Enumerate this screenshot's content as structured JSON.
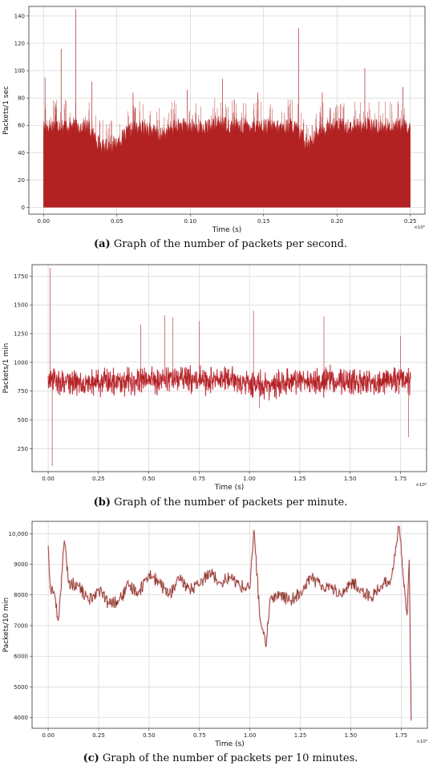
{
  "panels": [
    {
      "caption_letter": "(a)",
      "caption_text": " Graph of the number of packets per second.",
      "multiplier": "×10⁶",
      "chart_data": {
        "type": "bar",
        "title": "",
        "xlabel": "Time (s)",
        "ylabel": "Packets/1 sec",
        "xlim": [
          -0.01,
          0.26
        ],
        "ylim": [
          -5,
          147
        ],
        "xticks": [
          0.0,
          0.05,
          0.1,
          0.15,
          0.2,
          0.25
        ],
        "xtick_labels": [
          "0.00",
          "0.05",
          "0.10",
          "0.15",
          "0.20",
          "0.25"
        ],
        "yticks": [
          0,
          20,
          40,
          60,
          80,
          100,
          120,
          140
        ],
        "ytick_labels": [
          "0",
          "20",
          "40",
          "60",
          "80",
          "100",
          "120",
          "140"
        ],
        "grid": true,
        "series": [
          {
            "color": "#b22222",
            "x": [
              0.0,
              0.01,
              0.02,
              0.03,
              0.04,
              0.05,
              0.06,
              0.07,
              0.08,
              0.09,
              0.1,
              0.11,
              0.12,
              0.13,
              0.14,
              0.15,
              0.16,
              0.17,
              0.18,
              0.19,
              0.2,
              0.21,
              0.22,
              0.23,
              0.24,
              0.25
            ],
            "envelope": [
              57,
              58,
              58,
              57,
              42,
              45,
              55,
              57,
              50,
              58,
              57,
              56,
              60,
              57,
              58,
              57,
              56,
              58,
              45,
              55,
              58,
              57,
              58,
              57,
              58,
              57
            ],
            "spikes": [
              {
                "x": 0.001,
                "y": 95
              },
              {
                "x": 0.012,
                "y": 116
              },
              {
                "x": 0.022,
                "y": 145
              },
              {
                "x": 0.033,
                "y": 92
              },
              {
                "x": 0.061,
                "y": 84
              },
              {
                "x": 0.098,
                "y": 86
              },
              {
                "x": 0.122,
                "y": 94
              },
              {
                "x": 0.146,
                "y": 84
              },
              {
                "x": 0.174,
                "y": 131
              },
              {
                "x": 0.19,
                "y": 84
              },
              {
                "x": 0.219,
                "y": 102
              },
              {
                "x": 0.245,
                "y": 88
              }
            ]
          }
        ]
      }
    },
    {
      "caption_letter": "(b)",
      "caption_text": " Graph of the number of packets per minute.",
      "multiplier": "×10⁶",
      "chart_data": {
        "type": "line",
        "title": "",
        "xlabel": "Time (s)",
        "ylabel": "Packets/1 min",
        "xlim": [
          -0.08,
          1.88
        ],
        "ylim": [
          50,
          1850
        ],
        "xticks": [
          0.0,
          0.25,
          0.5,
          0.75,
          1.0,
          1.25,
          1.5,
          1.75
        ],
        "xtick_labels": [
          "0.00",
          "0.25",
          "0.50",
          "0.75",
          "1.00",
          "1.25",
          "1.50",
          "1.75"
        ],
        "yticks": [
          250,
          500,
          750,
          1000,
          1250,
          1500,
          1750
        ],
        "ytick_labels": [
          "250",
          "500",
          "750",
          "1000",
          "1250",
          "1500",
          "1750"
        ],
        "grid": true,
        "series": [
          {
            "color": "#b22222",
            "x": [
              0.0,
              0.1,
              0.2,
              0.3,
              0.4,
              0.5,
              0.6,
              0.7,
              0.8,
              0.9,
              1.0,
              1.1,
              1.2,
              1.3,
              1.4,
              1.5,
              1.6,
              1.7,
              1.8
            ],
            "mean": [
              840,
              830,
              820,
              840,
              845,
              850,
              860,
              855,
              840,
              850,
              820,
              790,
              830,
              840,
              845,
              830,
              820,
              850,
              840
            ],
            "spread": 110,
            "spikes": [
              {
                "x": 0.01,
                "y": 1820
              },
              {
                "x": 0.02,
                "y": 100
              },
              {
                "x": 0.46,
                "y": 1330
              },
              {
                "x": 0.58,
                "y": 1410
              },
              {
                "x": 0.62,
                "y": 1390
              },
              {
                "x": 0.75,
                "y": 1360
              },
              {
                "x": 1.02,
                "y": 1450
              },
              {
                "x": 1.05,
                "y": 600
              },
              {
                "x": 1.37,
                "y": 1400
              },
              {
                "x": 1.75,
                "y": 1230
              },
              {
                "x": 1.79,
                "y": 350
              }
            ]
          }
        ]
      }
    },
    {
      "caption_letter": "(c)",
      "caption_text": " Graph of the number of packets per 10 minutes.",
      "multiplier": "×10⁶",
      "chart_data": {
        "type": "line",
        "title": "",
        "xlabel": "Time (s)",
        "ylabel": "Packets/10 min",
        "xlim": [
          -0.08,
          1.88
        ],
        "ylim": [
          3650,
          10400
        ],
        "xticks": [
          0.0,
          0.25,
          0.5,
          0.75,
          1.0,
          1.25,
          1.5,
          1.75
        ],
        "xtick_labels": [
          "0.00",
          "0.25",
          "0.50",
          "0.75",
          "1.00",
          "1.25",
          "1.50",
          "1.75"
        ],
        "yticks": [
          4000,
          5000,
          6000,
          7000,
          8000,
          9000,
          10000
        ],
        "ytick_labels": [
          "4000",
          "5000",
          "6000",
          "7000",
          "8000",
          "9000",
          "10,000"
        ],
        "grid": true,
        "series": [
          {
            "color": "#8b3a2a",
            "x": [
              0.0,
              0.01,
              0.03,
              0.05,
              0.08,
              0.1,
              0.15,
              0.2,
              0.25,
              0.3,
              0.35,
              0.4,
              0.45,
              0.5,
              0.55,
              0.6,
              0.65,
              0.7,
              0.75,
              0.8,
              0.85,
              0.9,
              0.95,
              1.0,
              1.02,
              1.05,
              1.08,
              1.1,
              1.15,
              1.2,
              1.25,
              1.3,
              1.35,
              1.4,
              1.45,
              1.5,
              1.55,
              1.6,
              1.65,
              1.7,
              1.74,
              1.76,
              1.78,
              1.79,
              1.8
            ],
            "y": [
              9600,
              8200,
              8100,
              7100,
              9800,
              8400,
              8300,
              7800,
              8200,
              7700,
              7800,
              8300,
              8100,
              8700,
              8400,
              8000,
              8500,
              8200,
              8300,
              8800,
              8400,
              8600,
              8300,
              8200,
              10200,
              7200,
              6300,
              7900,
              8000,
              7800,
              8100,
              8600,
              8300,
              8300,
              8000,
              8400,
              8200,
              7900,
              8300,
              8500,
              10300,
              8600,
              7300,
              9200,
              3900
            ]
          }
        ]
      }
    }
  ]
}
